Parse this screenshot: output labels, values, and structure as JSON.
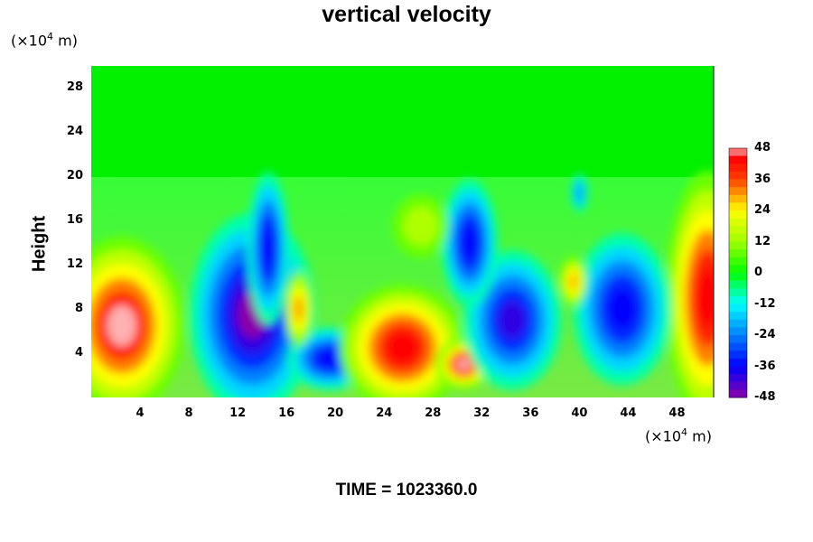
{
  "chart_data": {
    "type": "heatmap",
    "title": "vertical velocity",
    "ylabel": "Height",
    "xlabel": "",
    "y_unit_prefix": "(×10",
    "x_unit_prefix": "(×10",
    "unit_exponent": "4",
    "unit_suffix": " m)",
    "xlim": [
      0,
      51
    ],
    "ylim": [
      0,
      30
    ],
    "x_ticks": [
      "4",
      "8",
      "12",
      "16",
      "20",
      "24",
      "28",
      "32",
      "36",
      "40",
      "44",
      "48"
    ],
    "y_ticks": [
      "4",
      "8",
      "12",
      "16",
      "20",
      "24",
      "28"
    ],
    "colorbar": {
      "range": [
        -48,
        48
      ],
      "ticks": [
        "48",
        "36",
        "24",
        "12",
        "0",
        "-12",
        "-24",
        "-36",
        "-48"
      ]
    },
    "features": [
      {
        "x": 2.5,
        "y": 6.5,
        "value": 48
      },
      {
        "x": 50.5,
        "y": 9,
        "value": 44
      },
      {
        "x": 13.2,
        "y": 7.5,
        "value": -48
      },
      {
        "x": 14.5,
        "y": 13.5,
        "value": -36
      },
      {
        "x": 19.5,
        "y": 3.5,
        "value": -36
      },
      {
        "x": 25.5,
        "y": 4.5,
        "value": 44
      },
      {
        "x": 30.5,
        "y": 3,
        "value": 48
      },
      {
        "x": 34.5,
        "y": 7,
        "value": -40
      },
      {
        "x": 31,
        "y": 14,
        "value": -36
      },
      {
        "x": 43.5,
        "y": 8,
        "value": -36
      },
      {
        "x": 17,
        "y": 8,
        "value": 30
      },
      {
        "x": 39.5,
        "y": 10.5,
        "value": 28
      },
      {
        "x": 27,
        "y": 15.5,
        "value": 14
      },
      {
        "x": 40,
        "y": 18.5,
        "value": -20
      }
    ],
    "colors": {
      "max": "#ffb0b0",
      "high": "#ff0000",
      "mid_high": "#ffff00",
      "zero": "#00ff00",
      "mid_low": "#00ffff",
      "low": "#0000ff",
      "min": "#8a00a8"
    }
  },
  "footer": {
    "time_label": "TIME = 1023360.0"
  }
}
